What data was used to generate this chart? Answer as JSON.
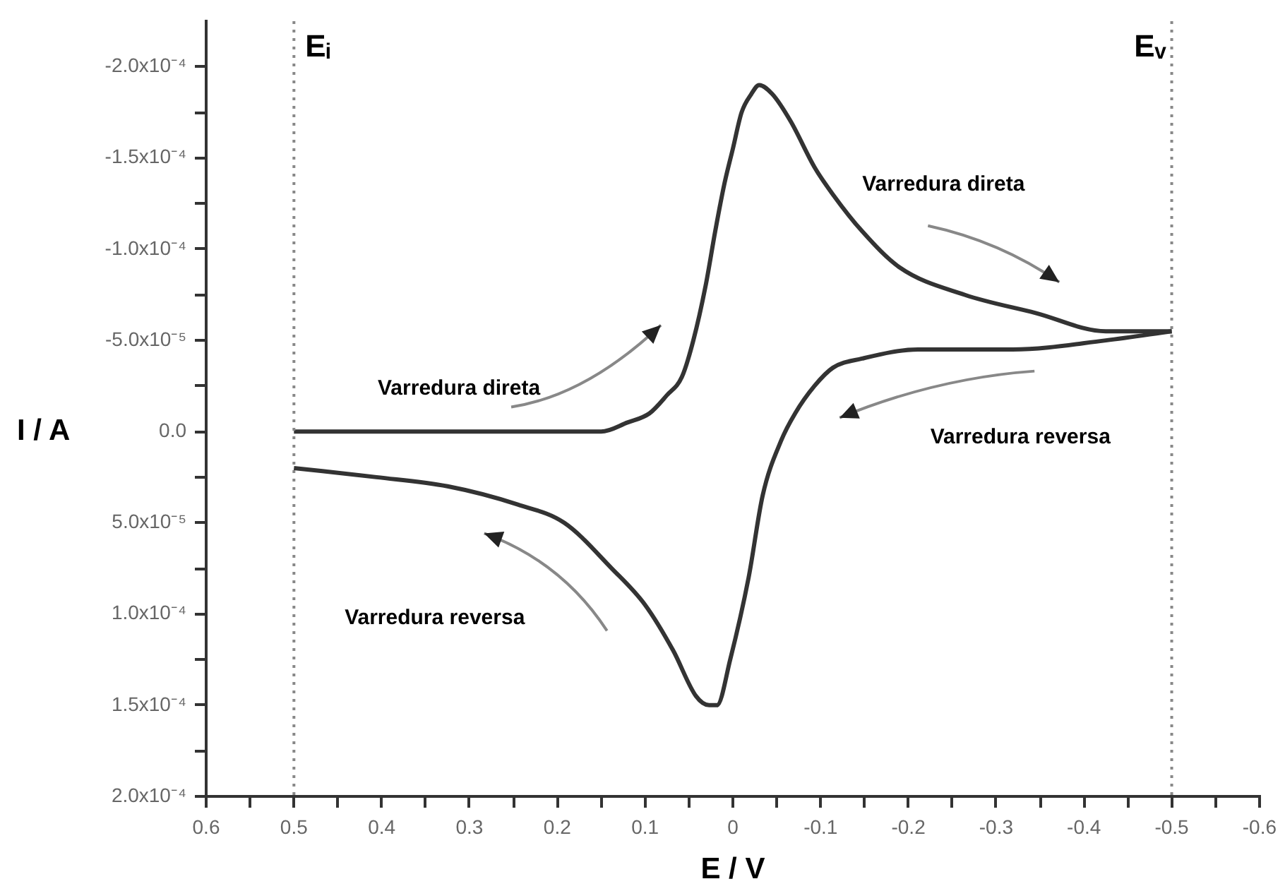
{
  "chart_data": {
    "type": "line",
    "xlabel": "E / V",
    "ylabel": "I / A",
    "xlim": [
      0.6,
      -0.6
    ],
    "ylim": [
      0.0002,
      -0.000225
    ],
    "xticks": [
      0.6,
      {
        "value": 0.55,
        "label": null
      },
      0.5,
      {
        "value": 0.45,
        "label": null
      },
      0.4,
      {
        "value": 0.35,
        "label": null
      },
      0.3,
      {
        "value": 0.25,
        "label": null
      },
      0.2,
      {
        "value": 0.15,
        "label": null
      },
      0.1,
      {
        "value": 0.05,
        "label": null
      },
      0.0,
      {
        "value": -0.05,
        "label": null
      },
      -0.1,
      {
        "value": -0.15,
        "label": null
      },
      -0.2,
      {
        "value": -0.25,
        "label": null
      },
      -0.3,
      {
        "value": -0.35,
        "label": null
      },
      -0.4,
      {
        "value": -0.45,
        "label": null
      },
      -0.5,
      {
        "value": -0.55,
        "label": null
      },
      -0.6
    ],
    "yticks": [
      {
        "value": -0.0002,
        "label": "-2.0x10⁻⁴"
      },
      {
        "value": -0.000175,
        "label": null
      },
      {
        "value": -0.00015,
        "label": "-1.5x10⁻⁴"
      },
      {
        "value": -0.000125,
        "label": null
      },
      {
        "value": -0.0001,
        "label": "-1.0x10⁻⁴"
      },
      {
        "value": -7.5e-05,
        "label": null
      },
      {
        "value": -5e-05,
        "label": "-5.0x10⁻⁵"
      },
      {
        "value": -2.5e-05,
        "label": null
      },
      {
        "value": 0,
        "label": "0.0"
      },
      {
        "value": 2.5e-05,
        "label": null
      },
      {
        "value": 5e-05,
        "label": "5.0x10⁻⁵"
      },
      {
        "value": 7.5e-05,
        "label": null
      },
      {
        "value": 0.0001,
        "label": "1.0x10⁻⁴"
      },
      {
        "value": 0.000125,
        "label": null
      },
      {
        "value": 0.00015,
        "label": "1.5x10⁻⁴"
      },
      {
        "value": 0.000175,
        "label": null
      },
      {
        "value": 0.0002,
        "label": "2.0x10⁻⁴"
      }
    ],
    "series": [
      {
        "color": "#333333",
        "x": [
          0.5,
          0.4,
          0.3,
          0.2,
          0.15,
          0.12,
          0.095,
          0.075,
          0.058,
          0.045,
          0.031,
          0.02,
          0.01,
          0.0,
          -0.01,
          -0.021,
          -0.03,
          -0.045,
          -0.066,
          -0.093,
          -0.114,
          -0.147,
          -0.19,
          -0.264,
          -0.345,
          -0.425,
          -0.5
        ],
        "values": [
          0,
          0,
          0,
          0,
          0,
          -5e-06,
          -1e-05,
          -2e-05,
          -3e-05,
          -5e-05,
          -8e-05,
          -0.00011,
          -0.000135,
          -0.000155,
          -0.000175,
          -0.000185,
          -0.00019,
          -0.000185,
          -0.00017,
          -0.000145,
          -0.00013,
          -0.00011,
          -9e-05,
          -7.5e-05,
          -6.5e-05,
          -5.5e-05,
          -5.5e-05
        ]
      },
      {
        "color": "#333333",
        "x": [
          -0.5,
          -0.425,
          -0.319,
          -0.211,
          -0.147,
          -0.114,
          -0.093,
          -0.071,
          -0.055,
          -0.034,
          -0.018,
          0.003,
          0.018,
          0.027,
          0.042,
          0.068,
          0.1,
          0.138,
          0.192,
          0.245,
          0.325,
          0.406,
          0.5
        ],
        "values": [
          -5.5e-05,
          -5e-05,
          -4.5e-05,
          -4.5e-05,
          -4e-05,
          -3.5e-05,
          -2.5e-05,
          -1e-05,
          5e-06,
          3.5e-05,
          8e-05,
          0.000125,
          0.00015,
          0.00015,
          0.000145,
          0.00012,
          9.5e-05,
          7.5e-05,
          5e-05,
          4e-05,
          3e-05,
          2.5e-05,
          2e-05
        ]
      }
    ],
    "ref_lines": [
      {
        "axis": "x",
        "value": 0.5,
        "label": "Eᵢ",
        "color": "#888888",
        "line_style": "dotted"
      },
      {
        "axis": "x",
        "value": -0.5,
        "label": "Eᵥ",
        "color": "#888888",
        "line_style": "dotted"
      }
    ],
    "annotations": [
      "Varredura direta",
      "Varredura direta",
      "Varredura reversa",
      "Varredura reversa"
    ]
  }
}
